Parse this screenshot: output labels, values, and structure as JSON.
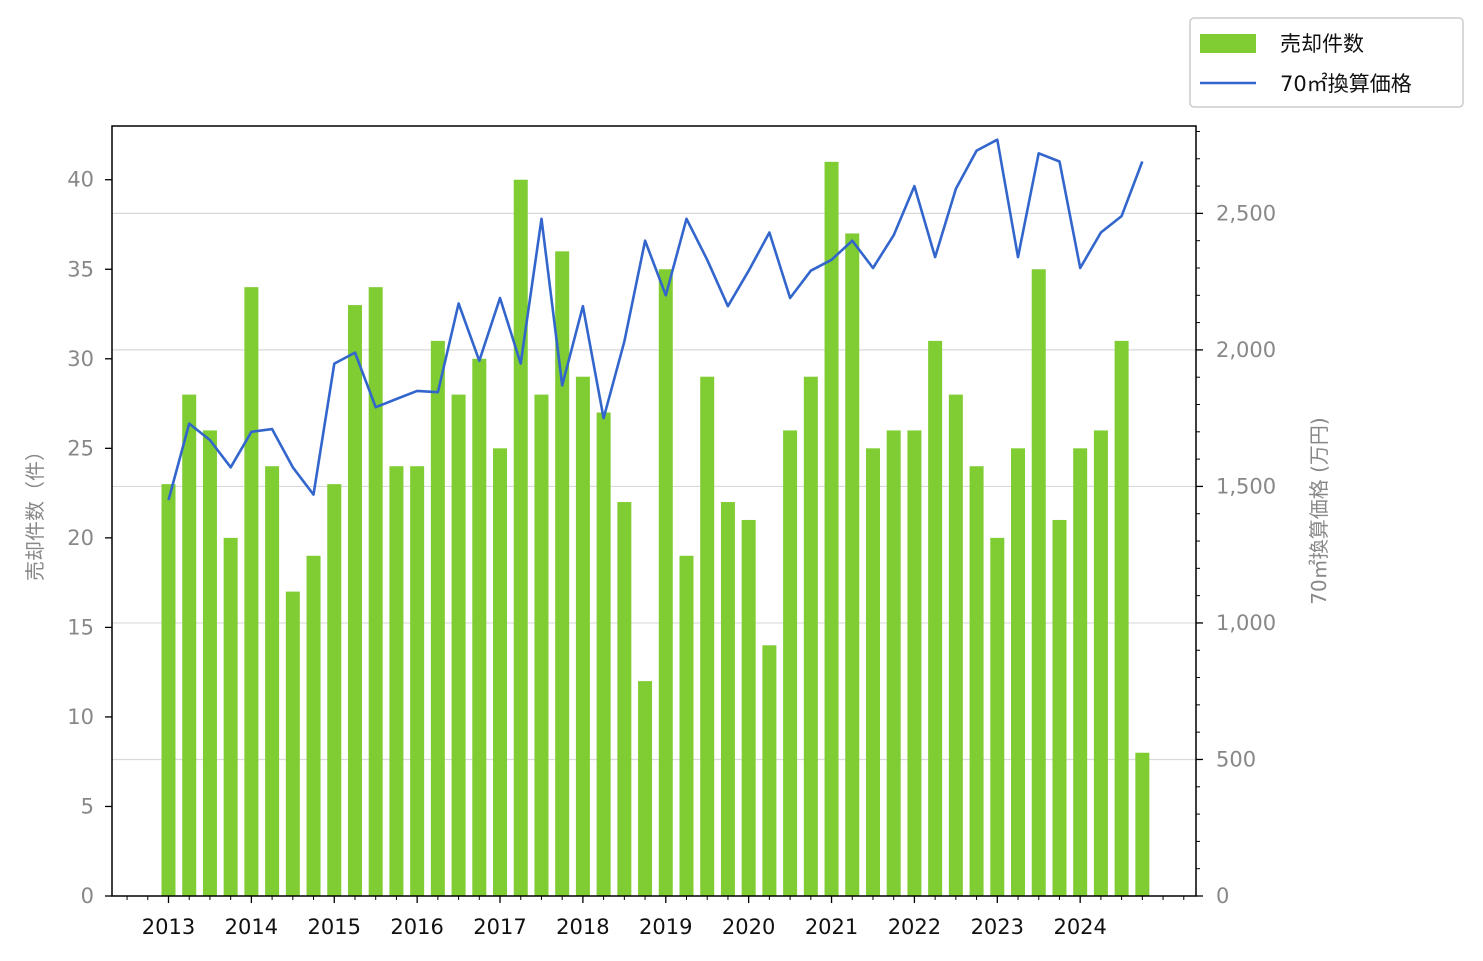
{
  "chart_data": {
    "type": "bar",
    "x_tick_labels": [
      "2013",
      "2014",
      "2015",
      "2016",
      "2017",
      "2018",
      "2019",
      "2020",
      "2021",
      "2022",
      "2023",
      "2024"
    ],
    "periods": [
      "2013-Q1",
      "2013-Q2",
      "2013-Q3",
      "2013-Q4",
      "2014-Q1",
      "2014-Q2",
      "2014-Q3",
      "2014-Q4",
      "2015-Q1",
      "2015-Q2",
      "2015-Q3",
      "2015-Q4",
      "2016-Q1",
      "2016-Q2",
      "2016-Q3",
      "2016-Q4",
      "2017-Q1",
      "2017-Q2",
      "2017-Q3",
      "2017-Q4",
      "2018-Q1",
      "2018-Q2",
      "2018-Q3",
      "2018-Q4",
      "2019-Q1",
      "2019-Q2",
      "2019-Q3",
      "2019-Q4",
      "2020-Q1",
      "2020-Q2",
      "2020-Q3",
      "2020-Q4",
      "2021-Q1",
      "2021-Q2",
      "2021-Q3",
      "2021-Q4",
      "2022-Q1",
      "2022-Q2",
      "2022-Q3",
      "2022-Q4",
      "2023-Q1",
      "2023-Q2",
      "2023-Q3",
      "2023-Q4",
      "2024-Q1",
      "2024-Q2",
      "2024-Q3",
      "2024-Q4"
    ],
    "series": [
      {
        "name": "売却件数",
        "type": "bar",
        "axis": "left",
        "color": "#80cc33",
        "values": [
          23,
          28,
          26,
          20,
          34,
          24,
          17,
          19,
          23,
          33,
          34,
          24,
          24,
          31,
          28,
          30,
          25,
          40,
          28,
          36,
          29,
          27,
          22,
          12,
          35,
          19,
          29,
          22,
          21,
          14,
          26,
          29,
          41,
          37,
          25,
          26,
          26,
          31,
          28,
          24,
          20,
          25,
          35,
          21,
          25,
          26,
          31,
          8
        ]
      },
      {
        "name": "70㎡換算価格",
        "type": "line",
        "axis": "right",
        "color": "#3366cc",
        "values": [
          1450,
          1730,
          1670,
          1570,
          1700,
          1710,
          1570,
          1470,
          1950,
          1990,
          1790,
          1820,
          1850,
          1845,
          2170,
          1960,
          2190,
          1950,
          2480,
          1870,
          2160,
          1750,
          2030,
          2400,
          2200,
          2480,
          2330,
          2160,
          2290,
          2430,
          2190,
          2290,
          2330,
          2400,
          2300,
          2420,
          2600,
          2340,
          2590,
          2730,
          2770,
          2340,
          2720,
          2690,
          2300,
          2430,
          2490,
          2690
        ]
      }
    ],
    "y_left": {
      "label": "売却件数（件）",
      "ylim": [
        0,
        43
      ],
      "ticks": [
        0,
        5,
        10,
        15,
        20,
        25,
        30,
        35,
        40
      ]
    },
    "y_right": {
      "label": "70㎡換算価格 (万円)",
      "ylim": [
        0,
        2820
      ],
      "ticks": [
        0,
        500,
        1000,
        1500,
        2000,
        2500
      ],
      "tick_labels": [
        "0",
        "500",
        "1,000",
        "1,500",
        "2,000",
        "2,500"
      ]
    },
    "grid": "horizontal, right axis",
    "legend_position": "top-right outside"
  }
}
